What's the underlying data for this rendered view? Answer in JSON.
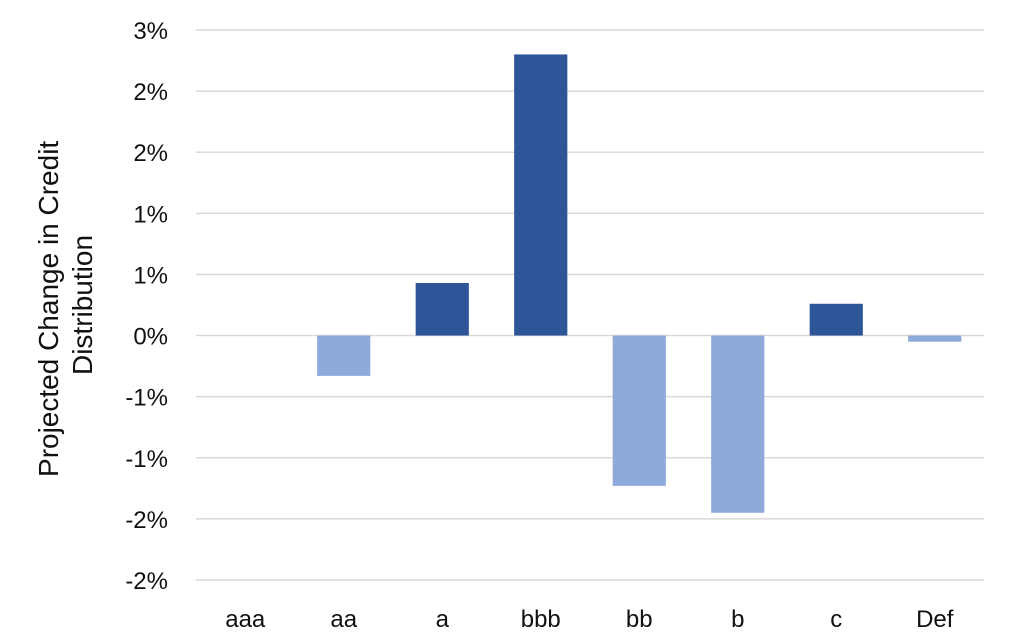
{
  "chart_data": {
    "type": "bar",
    "title": "",
    "xlabel": "",
    "ylabel_lines": [
      "Projected Change in Credit",
      "Distribution"
    ],
    "categories": [
      "aaa",
      "aa",
      "a",
      "bbb",
      "bb",
      "b",
      "c",
      "Def"
    ],
    "values": [
      0.0,
      -0.33,
      0.43,
      2.3,
      -1.23,
      -1.45,
      0.26,
      -0.05
    ],
    "ylim": [
      -2.0,
      2.5
    ],
    "y_tick_values": [
      2.5,
      2.0,
      1.5,
      1.0,
      0.5,
      0.0,
      -0.5,
      -1.0,
      -1.5,
      -2.0
    ],
    "y_tick_labels": [
      "3%",
      "2%",
      "2%",
      "1%",
      "1%",
      "0%",
      "-1%",
      "-1%",
      "-2%",
      "-2%"
    ],
    "grid": true,
    "legend": "none",
    "colors": {
      "positive": "#2e5597",
      "negative": "#8eaadb"
    }
  }
}
